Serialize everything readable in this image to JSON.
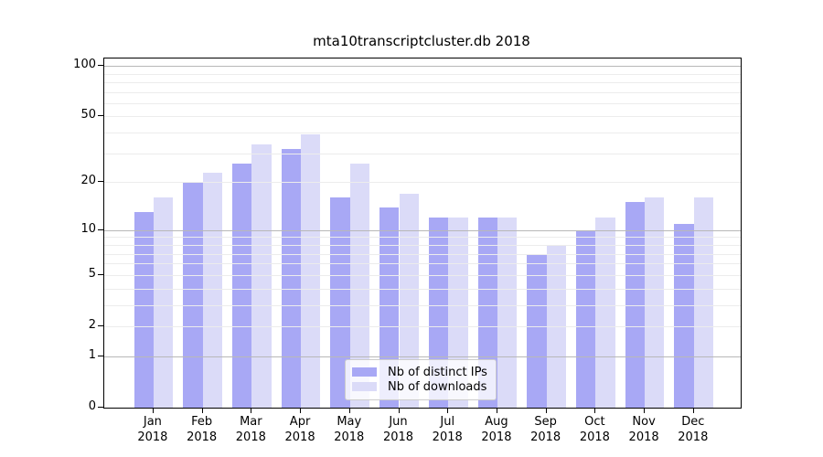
{
  "chart_data": {
    "type": "bar",
    "title": "mta10transcriptcluster.db 2018",
    "scale": "log1p",
    "ylim": [
      0,
      110.6
    ],
    "grid_on": true,
    "legend_position": "lower center",
    "categories": [
      "Jan",
      "Feb",
      "Mar",
      "Apr",
      "May",
      "Jun",
      "Jul",
      "Aug",
      "Sep",
      "Oct",
      "Nov",
      "Dec"
    ],
    "xlabel_year": "2018",
    "yticks": [
      100,
      50,
      20,
      10,
      5,
      2,
      1,
      0
    ],
    "grid": {
      "major": [
        1,
        10,
        100
      ],
      "minor": [
        2,
        3,
        4,
        5,
        6,
        7,
        8,
        9,
        20,
        30,
        40,
        50,
        60,
        70,
        80,
        90
      ]
    },
    "series": [
      {
        "name": "Nb of distinct IPs",
        "color": "#a8a8f5",
        "values": [
          13,
          20,
          26,
          32,
          16,
          14,
          12,
          12,
          7,
          10,
          15,
          11
        ]
      },
      {
        "name": "Nb of downloads",
        "color": "#dbdbf8",
        "values": [
          16,
          23,
          34,
          39,
          26,
          17,
          12,
          12,
          8,
          12,
          16,
          16
        ]
      }
    ],
    "colors": {
      "axis": "#000000",
      "grid_major": "#b8b8b8",
      "grid_minor": "#ececec",
      "legend_border": "#cccccc"
    }
  }
}
